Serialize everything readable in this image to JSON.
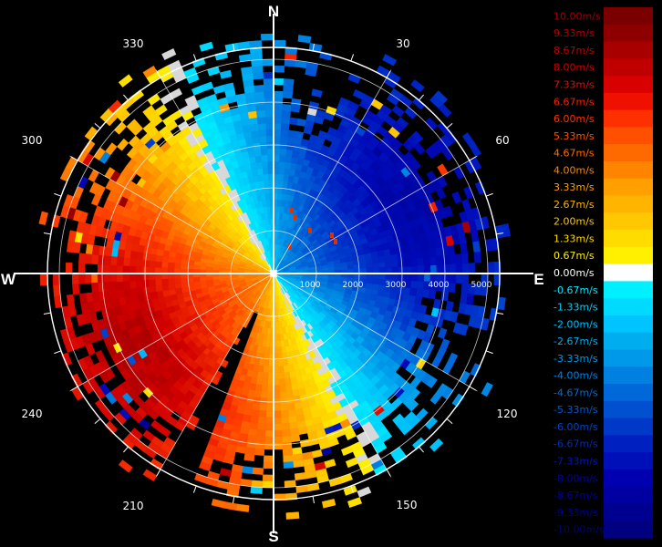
{
  "display": {
    "type": "doppler-wind-radar-ppi",
    "background": "#000000"
  },
  "compass": {
    "north": "N",
    "south": "S",
    "east": "E",
    "west": "W",
    "bearings": [
      "30",
      "60",
      "120",
      "150",
      "210",
      "240",
      "300",
      "330"
    ]
  },
  "range_rings": {
    "labels": [
      "1000",
      "2000",
      "3000",
      "4000",
      "5000"
    ]
  },
  "color_scale": {
    "labels": [
      "10.00m/s",
      "9.33m/s",
      "8.67m/s",
      "8.00m/s",
      "7.33m/s",
      "6.67m/s",
      "6.00m/s",
      "5.33m/s",
      "4.67m/s",
      "4.00m/s",
      "3.33m/s",
      "2.67m/s",
      "2.00m/s",
      "1.33m/s",
      "0.67m/s",
      "0.00m/s",
      "-0.67m/s",
      "-1.33m/s",
      "-2.00m/s",
      "-2.67m/s",
      "-3.33m/s",
      "-4.00m/s",
      "-4.67m/s",
      "-5.33m/s",
      "-6.00m/s",
      "-6.67m/s",
      "-7.33m/s",
      "-8.00m/s",
      "-8.67m/s",
      "-9.33m/s",
      "-10.00m/s"
    ],
    "colors": [
      "#7a0000",
      "#8e0000",
      "#a80000",
      "#c00000",
      "#d80000",
      "#f01000",
      "#ff3000",
      "#ff4f00",
      "#ff6a00",
      "#ff8500",
      "#ffa000",
      "#ffb400",
      "#ffc800",
      "#ffdc00",
      "#fff000",
      "#ffffff",
      "#00f0ff",
      "#00daff",
      "#00c4ff",
      "#00aef0",
      "#0098e8",
      "#0080e0",
      "#0068d8",
      "#0050d0",
      "#0038c8",
      "#0020c0",
      "#0010b8",
      "#0000b0",
      "#0000a0",
      "#000090",
      "#000080"
    ],
    "label_colors": [
      "#a00000",
      "#b00000",
      "#c00000",
      "#d00000",
      "#e01000",
      "#f02000",
      "#ff3000",
      "#ff5000",
      "#ff6a00",
      "#ff8500",
      "#ffa000",
      "#ffb400",
      "#ffc800",
      "#ffdc00",
      "#ffee00",
      "#ffffff",
      "#00e8ff",
      "#00d4ff",
      "#00c0ff",
      "#00aef0",
      "#009ae8",
      "#0084e0",
      "#006ed8",
      "#0058d0",
      "#0042c8",
      "#002cc0",
      "#0018b8",
      "#0000b0",
      "#0000a0",
      "#000090",
      "#000080"
    ]
  }
}
